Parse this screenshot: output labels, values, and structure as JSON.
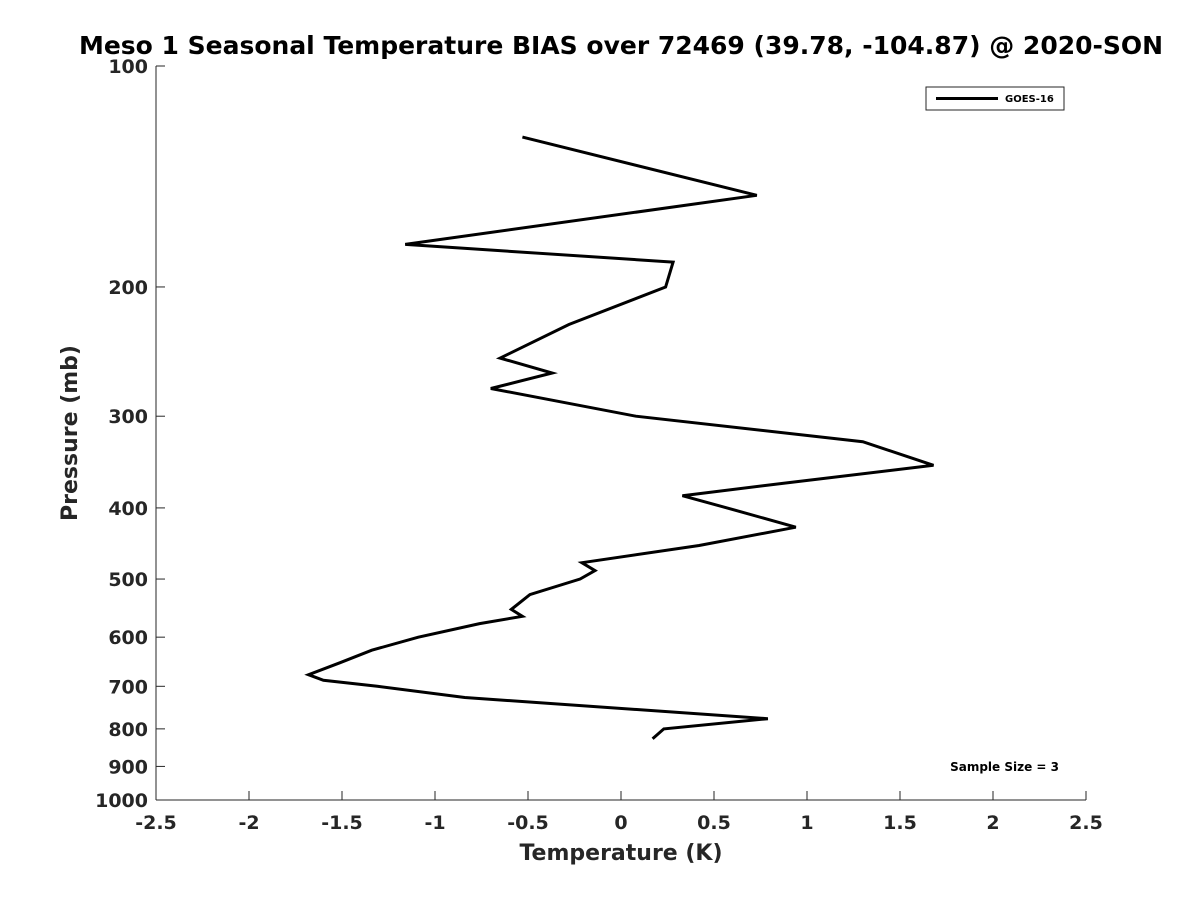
{
  "chart_data": {
    "type": "line",
    "title": "Meso 1 Seasonal Temperature BIAS over 72469 (39.78, -104.87) @ 2020-SON",
    "xlabel": "Temperature (K)",
    "ylabel": "Pressure (mb)",
    "xlim": [
      -2.5,
      2.5
    ],
    "ylim": [
      100,
      1000
    ],
    "yscale": "log",
    "y_reversed": true,
    "grid": false,
    "x_ticks": [
      -2.5,
      -2,
      -1.5,
      -1,
      -0.5,
      0,
      0.5,
      1,
      1.5,
      2,
      2.5
    ],
    "x_tick_labels": [
      "-2.5",
      "-2",
      "-1.5",
      "-1",
      "-0.5",
      "0",
      "0.5",
      "1",
      "1.5",
      "2",
      "2.5"
    ],
    "y_ticks": [
      100,
      200,
      300,
      400,
      500,
      600,
      700,
      800,
      900,
      1000
    ],
    "y_tick_labels": [
      "100",
      "200",
      "300",
      "400",
      "500",
      "600",
      "700",
      "800",
      "900",
      "1000"
    ],
    "legend": {
      "position": "top-right",
      "entries": [
        "GOES-16"
      ]
    },
    "annotation": "Sample Size = 3",
    "series": [
      {
        "name": "GOES-16",
        "color": "#000000",
        "x": [
          -0.53,
          0.73,
          -1.16,
          0.28,
          0.24,
          -0.28,
          -0.65,
          -0.37,
          -0.7,
          0.08,
          1.3,
          1.68,
          0.88,
          0.33,
          0.57,
          0.94,
          0.42,
          -0.21,
          -0.14,
          -0.22,
          -0.49,
          -0.59,
          -0.53,
          -0.76,
          -1.09,
          -1.34,
          -1.51,
          -1.68,
          -1.6,
          -1.31,
          -0.84,
          0.79,
          0.23,
          0.17
        ],
        "y": [
          125,
          150,
          175,
          185,
          200,
          225,
          250,
          262,
          275,
          300,
          325,
          350,
          370,
          385,
          400,
          425,
          450,
          475,
          487,
          500,
          525,
          550,
          562,
          575,
          600,
          625,
          650,
          675,
          687,
          700,
          725,
          775,
          800,
          825
        ]
      }
    ]
  }
}
